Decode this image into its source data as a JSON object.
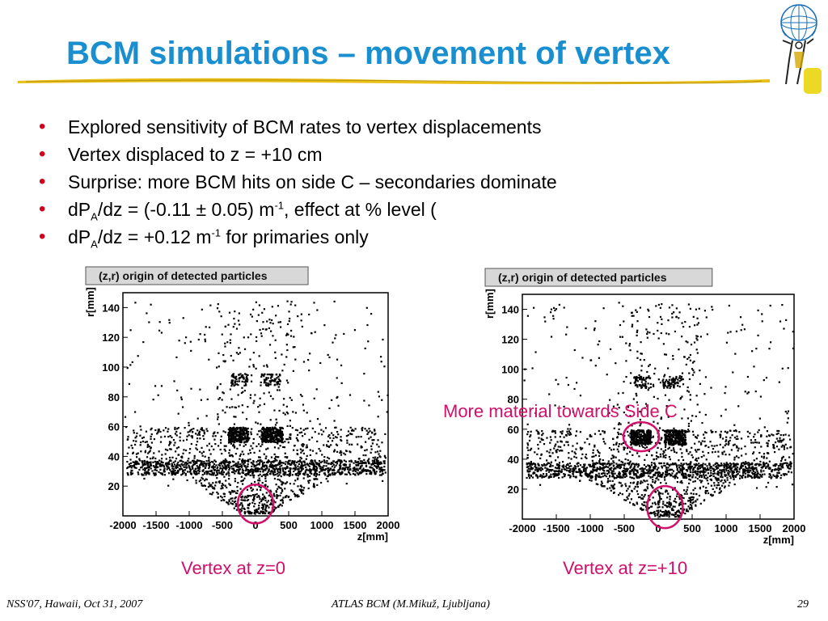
{
  "title": "BCM simulations – movement of vertex",
  "colors": {
    "title": "#1a8fd0",
    "bullet": "#d0021b",
    "annotation": "#d0106a",
    "rule_gold": "#e8b800"
  },
  "bullets": [
    {
      "text": "Explored sensitivity of BCM rates to vertex displacements"
    },
    {
      "text": "Vertex displaced to z = +10 cm"
    },
    {
      "text": "Surprise: more BCM hits on side C – secondaries dominate"
    },
    {
      "pre": "dP",
      "sub": "A",
      "mid": "/dz = (-0.11 ± 0.05) m",
      "sup": "-1",
      "post": ", effect at % level ("
    },
    {
      "pre": "dP",
      "sub": "A",
      "mid": "/dz = +0.12 m",
      "sup": "-1",
      "post": " for primaries only"
    }
  ],
  "bullet_icon": "bullet-dot",
  "chart_data": [
    {
      "type": "scatter",
      "title": "(z,r) origin of detected particles",
      "xlabel": "z[mm]",
      "ylabel": "r[mm]",
      "xlim": [
        -2000,
        2000
      ],
      "ylim": [
        0,
        150
      ],
      "x_ticks": [
        "-2000",
        "-1500",
        "-1000",
        "-500",
        "0",
        "500",
        "1000",
        "1500",
        "2000"
      ],
      "y_ticks": [
        "20",
        "40",
        "60",
        "80",
        "100",
        "120",
        "140"
      ],
      "vertex_z_mm": 0,
      "caption": "Vertex at z=0"
    },
    {
      "type": "scatter",
      "title": "(z,r) origin of detected particles",
      "xlabel": "z[mm]",
      "ylabel": "r[mm]",
      "xlim": [
        -2000,
        2000
      ],
      "ylim": [
        0,
        150
      ],
      "x_ticks": [
        "-2000",
        "-1500",
        "-1000",
        "-500",
        "0",
        "500",
        "1000",
        "1500",
        "2000"
      ],
      "y_ticks": [
        "20",
        "40",
        "60",
        "80",
        "100",
        "120",
        "140"
      ],
      "vertex_z_mm": 100,
      "caption": "Vertex at z=+10",
      "annotation": "More material towards Side C"
    }
  ],
  "footer": {
    "left": "NSS'07, Hawaii, Oct 31, 2007",
    "center": "ATLAS BCM (M.Mikuž, Ljubljana)",
    "right": "29"
  }
}
